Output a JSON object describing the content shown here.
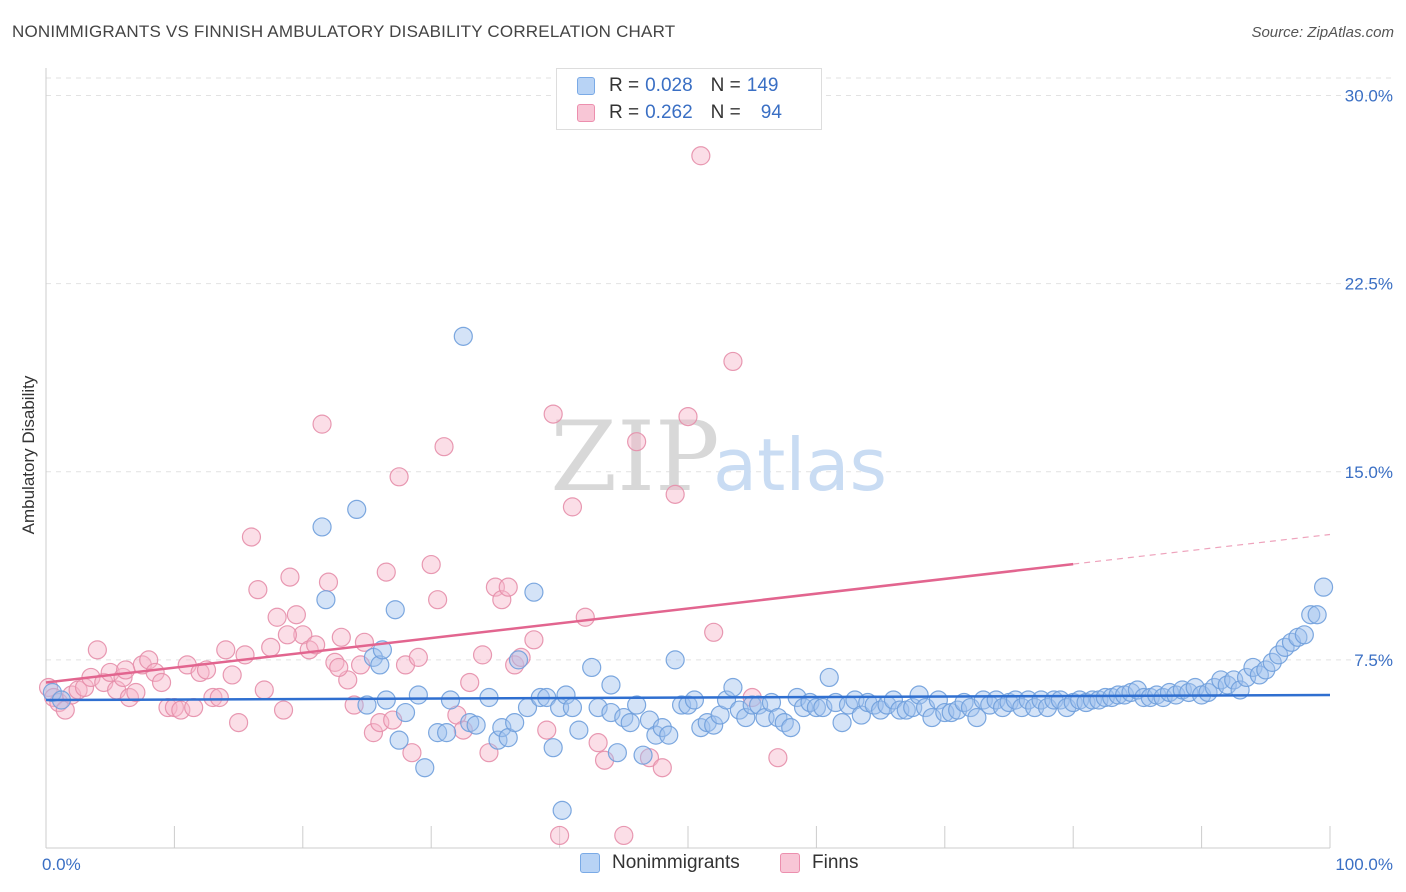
{
  "header": {
    "title": "NONIMMIGRANTS VS FINNISH AMBULATORY DISABILITY CORRELATION CHART",
    "source": "Source: ZipAtlas.com"
  },
  "watermark": {
    "part1": "ZIP",
    "part2": "atlas"
  },
  "legend": {
    "rows": [
      {
        "r_label": "R =",
        "r_value": "0.028",
        "n_label": "N =",
        "n_value": "149",
        "color": "#b8d3f5",
        "border": "#7aaae6"
      },
      {
        "r_label": "R =",
        "r_value": "0.262",
        "n_label": "N =",
        "n_value": "94",
        "color": "#f8c6d6",
        "border": "#ec8fae"
      }
    ]
  },
  "bottom_legend": [
    {
      "label": "Nonimmigrants",
      "color": "#b8d3f5",
      "border": "#7aaae6"
    },
    {
      "label": "Finns",
      "color": "#f8c6d6",
      "border": "#ec8fae"
    }
  ],
  "chart_data": {
    "type": "scatter",
    "title": "NONIMMIGRANTS VS FINNISH AMBULATORY DISABILITY CORRELATION CHART",
    "ylabel": "Ambulatory Disability",
    "xlabel": "",
    "x_tick_labels": [
      "0.0%",
      "100.0%"
    ],
    "y_tick_labels": [
      "7.5%",
      "15.0%",
      "22.5%",
      "30.0%"
    ],
    "y_ticks": [
      7.5,
      15.0,
      22.5,
      30.0
    ],
    "xlim": [
      0,
      100
    ],
    "ylim": [
      0,
      30.7
    ],
    "grid": true,
    "colors": {
      "blue_fill": "#9fc2ee",
      "blue_line": "#2f6fd0",
      "pink_fill": "#f6b6ca",
      "pink_line": "#e2658f"
    },
    "series": [
      {
        "name": "Nonimmigrants",
        "trend": {
          "x0": 0,
          "y0": 5.9,
          "x1": 100,
          "y1": 6.1,
          "solid_until": 100
        },
        "points": [
          [
            0.5,
            6.2
          ],
          [
            1.2,
            5.9
          ],
          [
            21.5,
            12.8
          ],
          [
            24.2,
            13.5
          ],
          [
            21.8,
            9.9
          ],
          [
            25.5,
            7.6
          ],
          [
            26.0,
            7.3
          ],
          [
            26.2,
            7.9
          ],
          [
            26.5,
            5.9
          ],
          [
            27.2,
            9.5
          ],
          [
            28.0,
            5.4
          ],
          [
            29.0,
            6.1
          ],
          [
            30.5,
            4.6
          ],
          [
            31.2,
            4.6
          ],
          [
            31.5,
            5.9
          ],
          [
            32.5,
            20.4
          ],
          [
            33.0,
            5.0
          ],
          [
            33.5,
            4.9
          ],
          [
            34.5,
            6.0
          ],
          [
            35.2,
            4.3
          ],
          [
            35.5,
            4.8
          ],
          [
            36.0,
            4.4
          ],
          [
            36.8,
            7.5
          ],
          [
            37.5,
            5.6
          ],
          [
            38.0,
            10.2
          ],
          [
            38.5,
            6.0
          ],
          [
            39.0,
            6.0
          ],
          [
            39.5,
            4.0
          ],
          [
            40.0,
            5.6
          ],
          [
            40.5,
            6.1
          ],
          [
            41.0,
            5.6
          ],
          [
            41.5,
            4.7
          ],
          [
            42.5,
            7.2
          ],
          [
            43.0,
            5.6
          ],
          [
            44.0,
            5.4
          ],
          [
            44.5,
            3.8
          ],
          [
            45.0,
            5.2
          ],
          [
            45.5,
            5.0
          ],
          [
            46.0,
            5.7
          ],
          [
            46.5,
            3.7
          ],
          [
            47.0,
            5.1
          ],
          [
            47.5,
            4.5
          ],
          [
            48.0,
            4.8
          ],
          [
            48.5,
            4.5
          ],
          [
            49.0,
            7.5
          ],
          [
            49.5,
            5.7
          ],
          [
            50.0,
            5.7
          ],
          [
            50.5,
            5.9
          ],
          [
            51.0,
            4.8
          ],
          [
            51.5,
            5.0
          ],
          [
            52.0,
            4.9
          ],
          [
            52.5,
            5.3
          ],
          [
            53.0,
            5.9
          ],
          [
            53.5,
            6.4
          ],
          [
            54.0,
            5.5
          ],
          [
            54.5,
            5.2
          ],
          [
            55.0,
            5.7
          ],
          [
            55.5,
            5.7
          ],
          [
            56.0,
            5.2
          ],
          [
            56.5,
            5.8
          ],
          [
            57.0,
            5.2
          ],
          [
            57.5,
            5.0
          ],
          [
            58.0,
            4.8
          ],
          [
            58.5,
            6.0
          ],
          [
            59.0,
            5.6
          ],
          [
            59.5,
            5.8
          ],
          [
            60.0,
            5.6
          ],
          [
            60.5,
            5.6
          ],
          [
            61.0,
            6.8
          ],
          [
            61.5,
            5.8
          ],
          [
            62.0,
            5.0
          ],
          [
            62.5,
            5.7
          ],
          [
            63.0,
            5.9
          ],
          [
            63.5,
            5.3
          ],
          [
            64.0,
            5.8
          ],
          [
            64.5,
            5.7
          ],
          [
            65.0,
            5.5
          ],
          [
            65.5,
            5.7
          ],
          [
            66.0,
            5.9
          ],
          [
            66.5,
            5.5
          ],
          [
            67.0,
            5.5
          ],
          [
            67.5,
            5.6
          ],
          [
            68.0,
            6.1
          ],
          [
            68.5,
            5.6
          ],
          [
            69.0,
            5.2
          ],
          [
            69.5,
            5.9
          ],
          [
            70.0,
            5.4
          ],
          [
            70.5,
            5.4
          ],
          [
            71.0,
            5.5
          ],
          [
            71.5,
            5.8
          ],
          [
            72.0,
            5.6
          ],
          [
            72.5,
            5.2
          ],
          [
            73.0,
            5.9
          ],
          [
            73.5,
            5.7
          ],
          [
            74.0,
            5.9
          ],
          [
            74.5,
            5.6
          ],
          [
            75.0,
            5.8
          ],
          [
            75.5,
            5.9
          ],
          [
            76.0,
            5.6
          ],
          [
            76.5,
            5.9
          ],
          [
            77.0,
            5.6
          ],
          [
            77.5,
            5.9
          ],
          [
            78.0,
            5.6
          ],
          [
            78.5,
            5.9
          ],
          [
            79.0,
            5.9
          ],
          [
            79.5,
            5.6
          ],
          [
            80.0,
            5.8
          ],
          [
            80.5,
            5.9
          ],
          [
            81.0,
            5.8
          ],
          [
            81.5,
            5.9
          ],
          [
            82.0,
            5.9
          ],
          [
            82.5,
            6.0
          ],
          [
            83.0,
            6.0
          ],
          [
            83.5,
            6.1
          ],
          [
            84.0,
            6.1
          ],
          [
            84.5,
            6.2
          ],
          [
            85.0,
            6.3
          ],
          [
            85.5,
            6.0
          ],
          [
            86.0,
            6.0
          ],
          [
            86.5,
            6.1
          ],
          [
            87.0,
            6.0
          ],
          [
            87.5,
            6.2
          ],
          [
            88.0,
            6.1
          ],
          [
            88.5,
            6.3
          ],
          [
            89.0,
            6.2
          ],
          [
            89.5,
            6.4
          ],
          [
            90.0,
            6.1
          ],
          [
            90.5,
            6.2
          ],
          [
            91.0,
            6.4
          ],
          [
            91.5,
            6.7
          ],
          [
            92.0,
            6.5
          ],
          [
            92.5,
            6.7
          ],
          [
            93.0,
            6.3
          ],
          [
            93.5,
            6.8
          ],
          [
            94.0,
            7.2
          ],
          [
            94.5,
            6.9
          ],
          [
            95.0,
            7.1
          ],
          [
            95.5,
            7.4
          ],
          [
            96.0,
            7.7
          ],
          [
            96.5,
            8.0
          ],
          [
            97.0,
            8.2
          ],
          [
            97.5,
            8.4
          ],
          [
            98.0,
            8.5
          ],
          [
            98.5,
            9.3
          ],
          [
            99.0,
            9.3
          ],
          [
            99.5,
            10.4
          ],
          [
            25.0,
            5.7
          ],
          [
            27.5,
            4.3
          ],
          [
            29.5,
            3.2
          ],
          [
            36.5,
            5.0
          ],
          [
            40.2,
            1.5
          ],
          [
            44.0,
            6.5
          ]
        ]
      },
      {
        "name": "Finns",
        "trend": {
          "x0": 0,
          "y0": 6.6,
          "x1": 100,
          "y1": 12.5,
          "solid_until": 80
        },
        "points": [
          [
            0.2,
            6.4
          ],
          [
            0.6,
            6.0
          ],
          [
            1.0,
            5.8
          ],
          [
            1.5,
            5.5
          ],
          [
            2.0,
            6.1
          ],
          [
            2.5,
            6.3
          ],
          [
            3.0,
            6.4
          ],
          [
            3.5,
            6.8
          ],
          [
            4.0,
            7.9
          ],
          [
            4.5,
            6.6
          ],
          [
            5.0,
            7.0
          ],
          [
            5.5,
            6.3
          ],
          [
            6.0,
            6.8
          ],
          [
            6.5,
            6.0
          ],
          [
            7.0,
            6.2
          ],
          [
            7.5,
            7.3
          ],
          [
            8.0,
            7.5
          ],
          [
            8.5,
            7.0
          ],
          [
            9.0,
            6.6
          ],
          [
            9.5,
            5.6
          ],
          [
            10.0,
            5.6
          ],
          [
            10.5,
            5.5
          ],
          [
            11.0,
            7.3
          ],
          [
            11.5,
            5.6
          ],
          [
            12.0,
            7.0
          ],
          [
            12.5,
            7.1
          ],
          [
            13.0,
            6.0
          ],
          [
            13.5,
            6.0
          ],
          [
            14.0,
            7.9
          ],
          [
            14.5,
            6.9
          ],
          [
            15.0,
            5.0
          ],
          [
            15.5,
            7.7
          ],
          [
            16.0,
            12.4
          ],
          [
            16.5,
            10.3
          ],
          [
            17.0,
            6.3
          ],
          [
            17.5,
            8.0
          ],
          [
            18.0,
            9.2
          ],
          [
            18.5,
            5.5
          ],
          [
            19.0,
            10.8
          ],
          [
            19.5,
            9.3
          ],
          [
            20.0,
            8.5
          ],
          [
            20.5,
            7.9
          ],
          [
            21.0,
            8.1
          ],
          [
            21.5,
            16.9
          ],
          [
            22.0,
            10.6
          ],
          [
            22.5,
            7.4
          ],
          [
            23.0,
            8.4
          ],
          [
            23.5,
            6.7
          ],
          [
            24.0,
            5.7
          ],
          [
            24.5,
            7.3
          ],
          [
            25.5,
            4.6
          ],
          [
            26.0,
            5.0
          ],
          [
            26.5,
            11.0
          ],
          [
            27.0,
            5.1
          ],
          [
            27.5,
            14.8
          ],
          [
            28.0,
            7.3
          ],
          [
            28.5,
            3.8
          ],
          [
            29.0,
            7.6
          ],
          [
            30.0,
            11.3
          ],
          [
            30.5,
            9.9
          ],
          [
            31.0,
            16.0
          ],
          [
            32.0,
            5.3
          ],
          [
            32.5,
            4.7
          ],
          [
            33.0,
            6.6
          ],
          [
            34.0,
            7.7
          ],
          [
            34.5,
            3.8
          ],
          [
            35.0,
            10.4
          ],
          [
            35.5,
            9.9
          ],
          [
            36.0,
            10.4
          ],
          [
            36.5,
            7.3
          ],
          [
            37.0,
            7.6
          ],
          [
            38.0,
            8.3
          ],
          [
            39.0,
            4.7
          ],
          [
            39.5,
            17.3
          ],
          [
            40.0,
            0.5
          ],
          [
            41.0,
            13.6
          ],
          [
            42.0,
            9.2
          ],
          [
            43.0,
            4.2
          ],
          [
            43.5,
            3.5
          ],
          [
            45.0,
            0.5
          ],
          [
            46.0,
            16.2
          ],
          [
            47.0,
            3.6
          ],
          [
            48.0,
            3.2
          ],
          [
            49.0,
            14.1
          ],
          [
            50.0,
            17.2
          ],
          [
            51.0,
            27.6
          ],
          [
            52.0,
            8.6
          ],
          [
            53.5,
            19.4
          ],
          [
            55.0,
            6.0
          ],
          [
            57.0,
            3.6
          ],
          [
            24.8,
            8.2
          ],
          [
            18.8,
            8.5
          ],
          [
            22.8,
            7.2
          ],
          [
            6.2,
            7.1
          ]
        ]
      }
    ]
  }
}
